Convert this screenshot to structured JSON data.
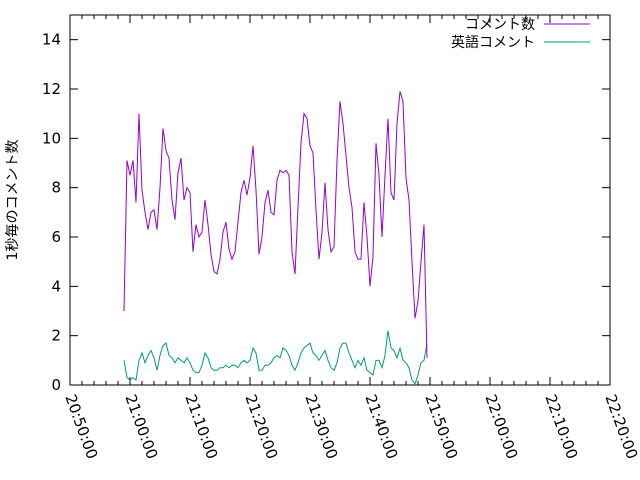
{
  "chart_data": {
    "type": "line",
    "ylabel": "1秒毎のコメント数",
    "xlabel": "",
    "ylim": [
      0,
      15
    ],
    "yticks": [
      0,
      2,
      4,
      6,
      8,
      10,
      12,
      14
    ],
    "xlim": [
      "20:50:00",
      "22:20:00"
    ],
    "xticks": [
      "20:50:00",
      "21:00:00",
      "21:10:00",
      "21:20:00",
      "21:30:00",
      "21:40:00",
      "21:50:00",
      "22:00:00",
      "22:10:00",
      "22:20:00"
    ],
    "grid": false,
    "legend_position": "top-right",
    "series": [
      {
        "name": "コメント数",
        "color": "#9400d3",
        "points": [
          [
            "20:59:00",
            3.0
          ],
          [
            "20:59:30",
            9.1
          ],
          [
            "21:00:00",
            8.5
          ],
          [
            "21:00:30",
            9.1
          ],
          [
            "21:01:00",
            7.4
          ],
          [
            "21:01:30",
            11.0
          ],
          [
            "21:02:00",
            7.9
          ],
          [
            "21:02:30",
            7.0
          ],
          [
            "21:03:00",
            6.3
          ],
          [
            "21:03:30",
            7.0
          ],
          [
            "21:04:00",
            7.1
          ],
          [
            "21:04:30",
            6.3
          ],
          [
            "21:05:00",
            8.0
          ],
          [
            "21:05:30",
            10.4
          ],
          [
            "21:06:00",
            9.5
          ],
          [
            "21:06:30",
            9.2
          ],
          [
            "21:07:00",
            7.5
          ],
          [
            "21:07:30",
            6.7
          ],
          [
            "21:08:00",
            8.6
          ],
          [
            "21:08:30",
            9.2
          ],
          [
            "21:09:00",
            7.5
          ],
          [
            "21:09:30",
            8.0
          ],
          [
            "21:10:00",
            7.8
          ],
          [
            "21:10:30",
            5.4
          ],
          [
            "21:11:00",
            6.5
          ],
          [
            "21:11:30",
            6.0
          ],
          [
            "21:12:00",
            6.2
          ],
          [
            "21:12:30",
            7.5
          ],
          [
            "21:13:00",
            6.5
          ],
          [
            "21:13:30",
            5.3
          ],
          [
            "21:14:00",
            4.6
          ],
          [
            "21:14:30",
            4.5
          ],
          [
            "21:15:00",
            5.1
          ],
          [
            "21:15:30",
            6.2
          ],
          [
            "21:16:00",
            6.6
          ],
          [
            "21:16:30",
            5.5
          ],
          [
            "21:17:00",
            5.1
          ],
          [
            "21:17:30",
            5.4
          ],
          [
            "21:18:00",
            6.6
          ],
          [
            "21:18:30",
            7.8
          ],
          [
            "21:19:00",
            8.3
          ],
          [
            "21:19:30",
            7.7
          ],
          [
            "21:20:00",
            8.4
          ],
          [
            "21:20:30",
            9.7
          ],
          [
            "21:21:00",
            7.9
          ],
          [
            "21:21:30",
            5.3
          ],
          [
            "21:22:00",
            6.0
          ],
          [
            "21:22:30",
            7.4
          ],
          [
            "21:23:00",
            7.9
          ],
          [
            "21:23:30",
            7.0
          ],
          [
            "21:24:00",
            6.9
          ],
          [
            "21:24:30",
            8.3
          ],
          [
            "21:25:00",
            8.7
          ],
          [
            "21:25:30",
            8.6
          ],
          [
            "21:26:00",
            8.7
          ],
          [
            "21:26:30",
            8.5
          ],
          [
            "21:27:00",
            5.4
          ],
          [
            "21:27:30",
            4.5
          ],
          [
            "21:28:00",
            7.2
          ],
          [
            "21:28:30",
            9.8
          ],
          [
            "21:29:00",
            11.0
          ],
          [
            "21:29:30",
            10.8
          ],
          [
            "21:30:00",
            9.7
          ],
          [
            "21:30:30",
            9.4
          ],
          [
            "21:31:00",
            7.1
          ],
          [
            "21:31:30",
            5.1
          ],
          [
            "21:32:00",
            6.2
          ],
          [
            "21:32:30",
            8.2
          ],
          [
            "21:33:00",
            6.3
          ],
          [
            "21:33:30",
            5.4
          ],
          [
            "21:34:00",
            5.6
          ],
          [
            "21:34:30",
            9.1
          ],
          [
            "21:35:00",
            11.5
          ],
          [
            "21:35:30",
            10.6
          ],
          [
            "21:36:00",
            9.3
          ],
          [
            "21:36:30",
            8.0
          ],
          [
            "21:37:00",
            7.2
          ],
          [
            "21:37:30",
            5.4
          ],
          [
            "21:38:00",
            5.1
          ],
          [
            "21:38:30",
            5.1
          ],
          [
            "21:39:00",
            7.4
          ],
          [
            "21:39:30",
            6.0
          ],
          [
            "21:40:00",
            4.0
          ],
          [
            "21:40:30",
            5.2
          ],
          [
            "21:41:00",
            9.8
          ],
          [
            "21:41:30",
            8.5
          ],
          [
            "21:42:00",
            6.0
          ],
          [
            "21:42:30",
            8.5
          ],
          [
            "21:43:00",
            10.8
          ],
          [
            "21:43:30",
            7.8
          ],
          [
            "21:44:00",
            7.5
          ],
          [
            "21:44:30",
            10.6
          ],
          [
            "21:45:00",
            11.9
          ],
          [
            "21:45:30",
            11.5
          ],
          [
            "21:46:00",
            8.4
          ],
          [
            "21:46:30",
            7.5
          ],
          [
            "21:47:00",
            5.0
          ],
          [
            "21:47:30",
            2.7
          ],
          [
            "21:48:00",
            3.4
          ],
          [
            "21:48:30",
            5.0
          ],
          [
            "21:49:00",
            6.5
          ],
          [
            "21:49:30",
            1.1
          ]
        ]
      },
      {
        "name": "英語コメント",
        "color": "#009e73",
        "points": [
          [
            "20:59:00",
            1.0
          ],
          [
            "20:59:30",
            0.3
          ],
          [
            "21:00:00",
            0.2
          ],
          [
            "21:00:30",
            0.3
          ],
          [
            "21:01:00",
            0.2
          ],
          [
            "21:01:30",
            1.0
          ],
          [
            "21:02:00",
            1.3
          ],
          [
            "21:02:30",
            0.9
          ],
          [
            "21:03:00",
            1.2
          ],
          [
            "21:03:30",
            1.4
          ],
          [
            "21:04:00",
            1.1
          ],
          [
            "21:04:30",
            0.6
          ],
          [
            "21:05:00",
            1.2
          ],
          [
            "21:05:30",
            1.6
          ],
          [
            "21:06:00",
            1.7
          ],
          [
            "21:06:30",
            1.2
          ],
          [
            "21:07:00",
            1.1
          ],
          [
            "21:07:30",
            0.9
          ],
          [
            "21:08:00",
            1.1
          ],
          [
            "21:08:30",
            1.0
          ],
          [
            "21:09:00",
            0.9
          ],
          [
            "21:09:30",
            1.1
          ],
          [
            "21:10:00",
            0.9
          ],
          [
            "21:10:30",
            0.6
          ],
          [
            "21:11:00",
            0.5
          ],
          [
            "21:11:30",
            0.5
          ],
          [
            "21:12:00",
            0.8
          ],
          [
            "21:12:30",
            1.3
          ],
          [
            "21:13:00",
            1.1
          ],
          [
            "21:13:30",
            0.7
          ],
          [
            "21:14:00",
            0.6
          ],
          [
            "21:14:30",
            0.6
          ],
          [
            "21:15:00",
            0.7
          ],
          [
            "21:15:30",
            0.7
          ],
          [
            "21:16:00",
            0.8
          ],
          [
            "21:16:30",
            0.7
          ],
          [
            "21:17:00",
            0.8
          ],
          [
            "21:17:30",
            0.8
          ],
          [
            "21:18:00",
            0.7
          ],
          [
            "21:18:30",
            0.9
          ],
          [
            "21:19:00",
            1.0
          ],
          [
            "21:19:30",
            0.9
          ],
          [
            "21:20:00",
            1.0
          ],
          [
            "21:20:30",
            1.5
          ],
          [
            "21:21:00",
            1.3
          ],
          [
            "21:21:30",
            0.6
          ],
          [
            "21:22:00",
            0.6
          ],
          [
            "21:22:30",
            0.8
          ],
          [
            "21:23:00",
            0.8
          ],
          [
            "21:23:30",
            0.9
          ],
          [
            "21:24:00",
            1.1
          ],
          [
            "21:24:30",
            1.2
          ],
          [
            "21:25:00",
            1.1
          ],
          [
            "21:25:30",
            1.5
          ],
          [
            "21:26:00",
            1.4
          ],
          [
            "21:26:30",
            1.2
          ],
          [
            "21:27:00",
            0.8
          ],
          [
            "21:27:30",
            0.6
          ],
          [
            "21:28:00",
            0.9
          ],
          [
            "21:28:30",
            1.3
          ],
          [
            "21:29:00",
            1.5
          ],
          [
            "21:29:30",
            1.6
          ],
          [
            "21:30:00",
            1.7
          ],
          [
            "21:30:30",
            1.3
          ],
          [
            "21:31:00",
            1.2
          ],
          [
            "21:31:30",
            1.0
          ],
          [
            "21:32:00",
            1.2
          ],
          [
            "21:32:30",
            1.4
          ],
          [
            "21:33:00",
            1.0
          ],
          [
            "21:33:30",
            0.7
          ],
          [
            "21:34:00",
            0.6
          ],
          [
            "21:34:30",
            0.9
          ],
          [
            "21:35:00",
            1.5
          ],
          [
            "21:35:30",
            1.7
          ],
          [
            "21:36:00",
            1.7
          ],
          [
            "21:36:30",
            1.3
          ],
          [
            "21:37:00",
            1.0
          ],
          [
            "21:37:30",
            0.7
          ],
          [
            "21:38:00",
            1.0
          ],
          [
            "21:38:30",
            0.8
          ],
          [
            "21:39:00",
            1.1
          ],
          [
            "21:39:30",
            0.6
          ],
          [
            "21:40:00",
            0.5
          ],
          [
            "21:40:30",
            0.4
          ],
          [
            "21:41:00",
            1.0
          ],
          [
            "21:41:30",
            1.0
          ],
          [
            "21:42:00",
            0.7
          ],
          [
            "21:42:30",
            1.2
          ],
          [
            "21:43:00",
            2.2
          ],
          [
            "21:43:30",
            1.5
          ],
          [
            "21:44:00",
            1.4
          ],
          [
            "21:44:30",
            1.1
          ],
          [
            "21:45:00",
            1.5
          ],
          [
            "21:45:30",
            1.0
          ],
          [
            "21:46:00",
            0.9
          ],
          [
            "21:46:30",
            0.7
          ],
          [
            "21:47:00",
            0.2
          ],
          [
            "21:47:30",
            0.05
          ],
          [
            "21:48:00",
            0.4
          ],
          [
            "21:48:30",
            0.9
          ],
          [
            "21:49:00",
            1.0
          ],
          [
            "21:49:30",
            1.7
          ]
        ]
      }
    ]
  }
}
